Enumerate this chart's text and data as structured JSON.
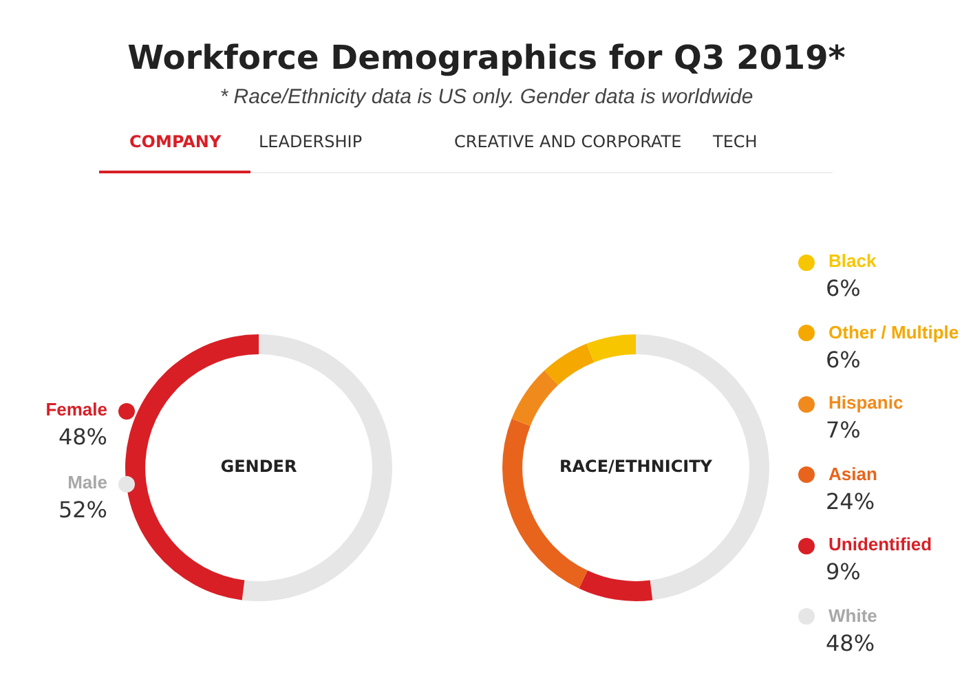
{
  "chart_data": [
    {
      "type": "other",
      "title": "Workforce Demographics for Q3 2019*",
      "subtitle": "* Race/Ethnicity data is US only. Gender data is worldwide",
      "annotations": [
        "COMPANY",
        "LEADERSHIP",
        "CREATIVE AND CORPORATE",
        "TECH"
      ]
    },
    {
      "type": "donut",
      "title": "GENDER",
      "categories": [
        "Female",
        "Male"
      ],
      "values": [
        48,
        52
      ],
      "value_labels": [
        "48%",
        "52%"
      ],
      "colors": [
        "#d81f26",
        "#e6e6e6"
      ],
      "legend": "left"
    },
    {
      "type": "donut",
      "title": "RACE/ETHNICITY",
      "categories": [
        "Black",
        "Other / Multiple",
        "Hispanic",
        "Asian",
        "Unidentified",
        "White"
      ],
      "values": [
        6,
        6,
        7,
        24,
        9,
        48
      ],
      "value_labels": [
        "6%",
        "6%",
        "7%",
        "24%",
        "9%",
        "48%"
      ],
      "colors": [
        "#f7c600",
        "#f5a800",
        "#f08a1c",
        "#e8641c",
        "#d81f26",
        "#e6e6e6"
      ],
      "legend": "right"
    }
  ]
}
